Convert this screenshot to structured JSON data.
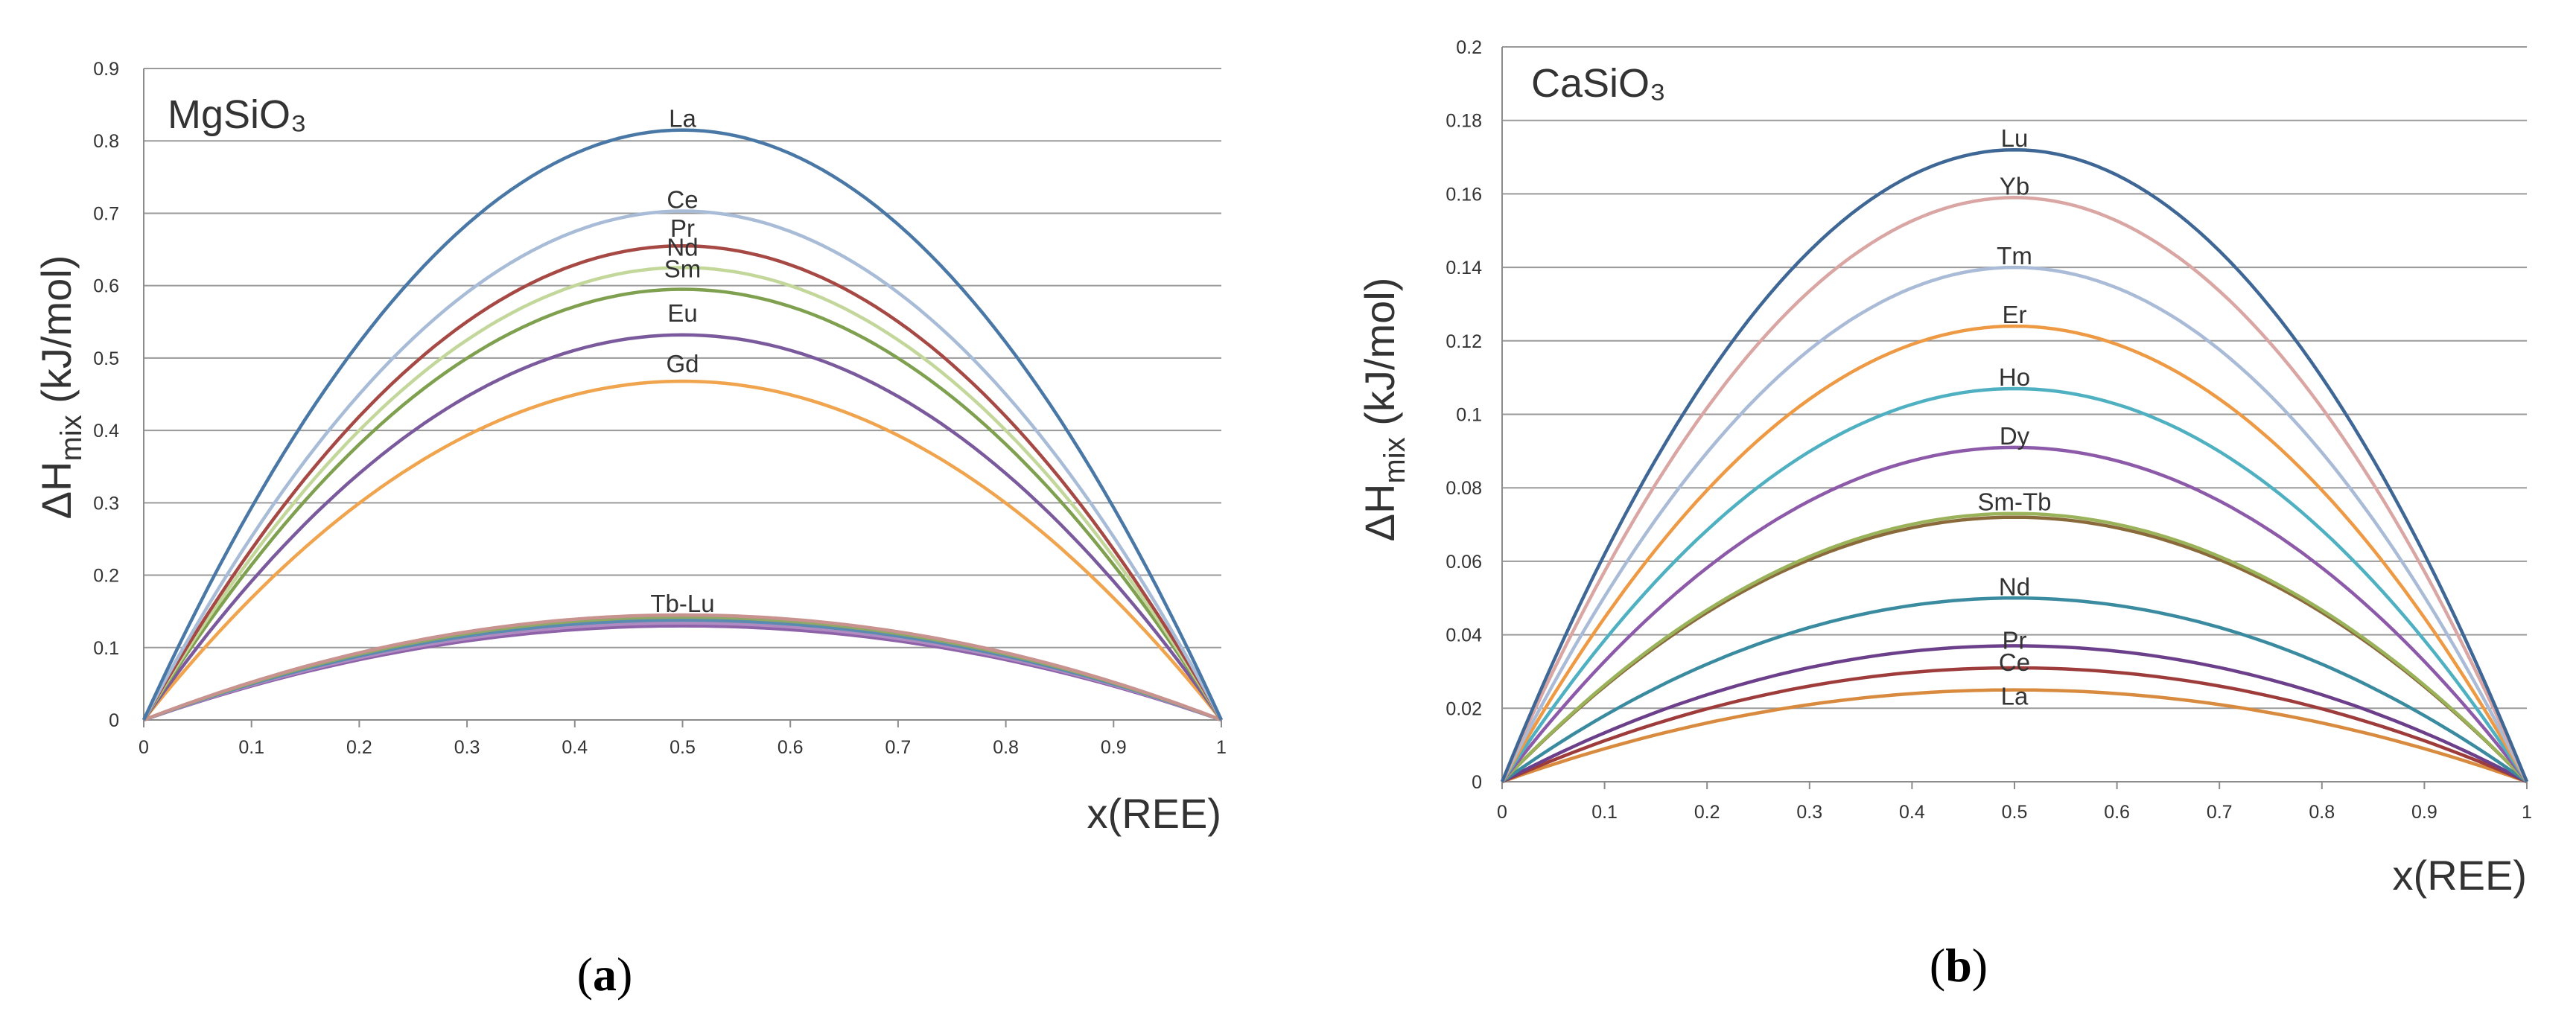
{
  "colors": {
    "grid": "#9a9a9a",
    "axis": "#8c8c8c",
    "text": "#333333",
    "La": "#4a78a6",
    "Ce": "#a8bcd8",
    "Pr": "#a64945",
    "Nd": "#c3d79b",
    "Sm": "#7ea04f",
    "Eu": "#7a5a9c",
    "Gd": "#f0a44e",
    "Tb-Lu": "#8e62a8",
    "Lu": "#3e6796",
    "Yb": "#d9a6a3",
    "Tm": "#a9bbd6",
    "Er": "#ee9a44",
    "Ho": "#4fb0c2",
    "Dy": "#8c5aa8",
    "Sm-Tb": "#9ab35a",
    "Nd_b": "#3a8aa0",
    "Pr_b": "#6c3f8a",
    "Ce_b": "#9e3b3b",
    "La_b": "#d88a3e"
  },
  "chart_data": [
    {
      "type": "line",
      "panel": "(a)",
      "panel_letter": "a",
      "title": "MgSiO₃",
      "xlabel": "x(REE)",
      "ylabel_main": "ΔH",
      "ylabel_sub": "mix",
      "ylabel_tail": " (kJ/mol)",
      "xlim": [
        0,
        1
      ],
      "ylim": [
        0,
        0.9
      ],
      "grid": true,
      "x_ticks": [
        "0",
        "0.1",
        "0.2",
        "0.3",
        "0.4",
        "0.5",
        "0.6",
        "0.7",
        "0.8",
        "0.9",
        "1"
      ],
      "y_ticks": [
        "0",
        "0.1",
        "0.2",
        "0.3",
        "0.4",
        "0.5",
        "0.6",
        "0.7",
        "0.8",
        "0.9"
      ],
      "curve": "y = 4 · peak · x · (1 − x)",
      "series": [
        {
          "name": "La",
          "peak": 0.815,
          "color": "#4a78a6"
        },
        {
          "name": "Ce",
          "peak": 0.703,
          "color": "#a8bcd8"
        },
        {
          "name": "Pr",
          "peak": 0.655,
          "color": "#a64945"
        },
        {
          "name": "Nd",
          "peak": 0.625,
          "color": "#c3d79b"
        },
        {
          "name": "Sm",
          "peak": 0.595,
          "color": "#7ea04f"
        },
        {
          "name": "Eu",
          "peak": 0.532,
          "color": "#7a5a9c"
        },
        {
          "name": "Gd",
          "peak": 0.468,
          "color": "#f0a44e"
        },
        {
          "name": "Tb-Lu",
          "peak": 0.145,
          "color": "#c8928e",
          "label": true
        },
        {
          "name": "Tb-Lu (2)",
          "peak": 0.142,
          "color": "#8ea865",
          "label": false
        },
        {
          "name": "Tb-Lu (3)",
          "peak": 0.138,
          "color": "#5a8bb0",
          "label": false
        },
        {
          "name": "Tb-Lu (4)",
          "peak": 0.134,
          "color": "#b08bc2",
          "label": false
        },
        {
          "name": "Tb-Lu (5)",
          "peak": 0.13,
          "color": "#8e62a8",
          "label": false
        }
      ]
    },
    {
      "type": "line",
      "panel": "(b)",
      "panel_letter": "b",
      "title": "CaSiO₃",
      "xlabel": "x(REE)",
      "ylabel_main": "ΔH",
      "ylabel_sub": "mix",
      "ylabel_tail": " (kJ/mol)",
      "xlim": [
        0,
        1
      ],
      "ylim": [
        0,
        0.2
      ],
      "grid": true,
      "x_ticks": [
        "0",
        "0.1",
        "0.2",
        "0.3",
        "0.4",
        "0.5",
        "0.6",
        "0.7",
        "0.8",
        "0.9",
        "1"
      ],
      "y_ticks": [
        "0",
        "0.02",
        "0.04",
        "0.06",
        "0.08",
        "0.1",
        "0.12",
        "0.14",
        "0.16",
        "0.18",
        "0.2"
      ],
      "curve": "y = 4 · peak · x · (1 − x)",
      "series": [
        {
          "name": "Lu",
          "peak": 0.172,
          "color": "#3e6796"
        },
        {
          "name": "Yb",
          "peak": 0.159,
          "color": "#d9a6a3"
        },
        {
          "name": "Tm",
          "peak": 0.14,
          "color": "#a9bbd6"
        },
        {
          "name": "Er",
          "peak": 0.124,
          "color": "#ee9a44"
        },
        {
          "name": "Ho",
          "peak": 0.107,
          "color": "#4fb0c2"
        },
        {
          "name": "Dy",
          "peak": 0.091,
          "color": "#8c5aa8"
        },
        {
          "name": "Sm-Tb",
          "peak": 0.073,
          "color": "#9ab35a",
          "label": true
        },
        {
          "name": "Sm-Tb (2)",
          "peak": 0.072,
          "color": "#8a6a3a",
          "label": false
        },
        {
          "name": "Nd",
          "peak": 0.05,
          "color": "#3a8aa0"
        },
        {
          "name": "Pr",
          "peak": 0.037,
          "color": "#6c3f8a"
        },
        {
          "name": "Ce",
          "peak": 0.031,
          "color": "#9e3b3b"
        },
        {
          "name": "La",
          "peak": 0.025,
          "color": "#d88a3e"
        }
      ]
    }
  ]
}
